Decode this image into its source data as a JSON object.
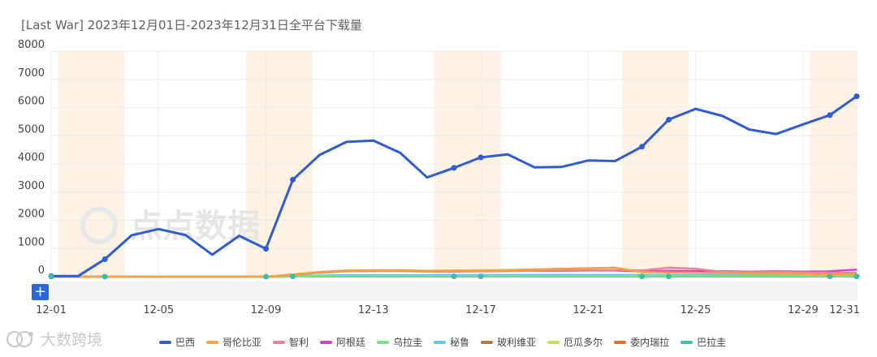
{
  "title": "[Last War]  2023年12月01日-2023年12月31日全平台下载量",
  "brand": "大数跨境",
  "watermark": "点点数据",
  "zoom_button": "+",
  "colors": {
    "weekend_band": "#fdf2e3",
    "grid": "#ececec",
    "axis_text": "#444444",
    "navigator_bg": "#f3f3f5"
  },
  "chart_data": {
    "type": "line",
    "title": "[Last War]  2023年12月01日-2023年12月31日全平台下载量",
    "x": [
      "12-01",
      "12-02",
      "12-03",
      "12-04",
      "12-05",
      "12-06",
      "12-07",
      "12-08",
      "12-09",
      "12-10",
      "12-11",
      "12-12",
      "12-13",
      "12-14",
      "12-15",
      "12-16",
      "12-17",
      "12-18",
      "12-19",
      "12-20",
      "12-21",
      "12-22",
      "12-23",
      "12-24",
      "12-25",
      "12-26",
      "12-27",
      "12-28",
      "12-29",
      "12-30",
      "12-31"
    ],
    "x_tick_labels": [
      "12-01",
      "12-05",
      "12-09",
      "12-13",
      "12-17",
      "12-21",
      "12-25",
      "12-29",
      "12-31"
    ],
    "y_ticks": [
      "8000",
      "7000",
      "6000",
      "5000",
      "4000",
      "3000",
      "2000",
      "1000",
      "0"
    ],
    "ylim": [
      0,
      8000
    ],
    "weekend_bands": [
      [
        "12-02",
        "12-03"
      ],
      [
        "12-09",
        "12-10"
      ],
      [
        "12-16",
        "12-17"
      ],
      [
        "12-23",
        "12-24"
      ],
      [
        "12-30",
        "12-31"
      ]
    ],
    "legend_position": "bottom",
    "series": [
      {
        "name": "巴西",
        "color": "#2f5bd3",
        "values": [
          20,
          20,
          620,
          1470,
          1690,
          1480,
          780,
          1450,
          990,
          3440,
          4320,
          4780,
          4830,
          4390,
          3520,
          3860,
          4230,
          4340,
          3880,
          3890,
          4120,
          4100,
          4610,
          5570,
          5950,
          5700,
          5220,
          5060,
          5400,
          5730,
          6400
        ]
      },
      {
        "name": "哥伦比亚",
        "color": "#f0a63a",
        "values": [
          0,
          0,
          0,
          0,
          0,
          0,
          0,
          0,
          0,
          80,
          170,
          220,
          230,
          230,
          210,
          220,
          220,
          240,
          260,
          280,
          300,
          320,
          160,
          150,
          140,
          120,
          110,
          110,
          100,
          90,
          90
        ]
      },
      {
        "name": "智利",
        "color": "#ef8099",
        "values": [
          0,
          0,
          0,
          0,
          0,
          0,
          0,
          0,
          0,
          60,
          140,
          190,
          200,
          200,
          180,
          180,
          190,
          200,
          210,
          220,
          230,
          230,
          220,
          320,
          280,
          170,
          170,
          170,
          150,
          140,
          140
        ]
      },
      {
        "name": "阿根廷",
        "color": "#d63fd6",
        "values": [
          0,
          0,
          0,
          0,
          0,
          0,
          0,
          0,
          0,
          70,
          160,
          200,
          210,
          210,
          190,
          190,
          210,
          210,
          210,
          210,
          220,
          220,
          190,
          210,
          200,
          190,
          180,
          190,
          180,
          190,
          250
        ]
      },
      {
        "name": "乌拉圭",
        "color": "#7fe07f",
        "values": [
          0,
          0,
          0,
          0,
          0,
          0,
          0,
          0,
          0,
          10,
          20,
          20,
          20,
          20,
          20,
          20,
          20,
          20,
          20,
          20,
          20,
          20,
          20,
          20,
          20,
          20,
          20,
          20,
          20,
          20,
          20
        ]
      },
      {
        "name": "秘鲁",
        "color": "#5ccbe6",
        "values": [
          0,
          0,
          0,
          0,
          0,
          0,
          0,
          0,
          0,
          20,
          40,
          50,
          50,
          50,
          50,
          50,
          50,
          50,
          50,
          50,
          50,
          50,
          50,
          50,
          50,
          50,
          50,
          50,
          50,
          50,
          50
        ]
      },
      {
        "name": "玻利维亚",
        "color": "#b0793d",
        "values": [
          0,
          0,
          0,
          0,
          0,
          0,
          0,
          0,
          0,
          10,
          20,
          20,
          20,
          20,
          20,
          20,
          20,
          20,
          20,
          20,
          20,
          20,
          20,
          20,
          20,
          20,
          20,
          20,
          20,
          20,
          20
        ]
      },
      {
        "name": "厄瓜多尔",
        "color": "#c8e24a",
        "values": [
          0,
          0,
          0,
          0,
          0,
          0,
          0,
          0,
          0,
          20,
          40,
          60,
          60,
          60,
          60,
          60,
          60,
          70,
          70,
          70,
          70,
          70,
          70,
          70,
          70,
          70,
          70,
          70,
          70,
          70,
          70
        ]
      },
      {
        "name": "委内瑞拉",
        "color": "#ef6a28",
        "values": [
          0,
          0,
          0,
          0,
          0,
          0,
          0,
          0,
          0,
          10,
          20,
          20,
          20,
          20,
          20,
          20,
          20,
          20,
          20,
          20,
          20,
          20,
          20,
          20,
          20,
          20,
          20,
          20,
          20,
          20,
          20
        ]
      },
      {
        "name": "巴拉圭",
        "color": "#3dbfa6",
        "values": [
          0,
          0,
          0,
          0,
          0,
          0,
          0,
          0,
          0,
          10,
          10,
          10,
          10,
          10,
          10,
          10,
          10,
          10,
          10,
          10,
          10,
          10,
          10,
          10,
          10,
          10,
          10,
          10,
          10,
          10,
          10
        ]
      }
    ]
  }
}
